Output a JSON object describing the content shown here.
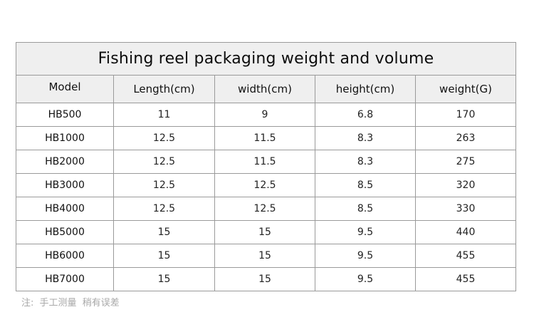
{
  "table": {
    "title": "Fishing reel packaging weight and volume",
    "headers": [
      "Model",
      "Length(cm)",
      "width(cm)",
      "height(cm)",
      "weight(G)"
    ],
    "rows": [
      [
        "HB500",
        "11",
        "9",
        "6.8",
        "170"
      ],
      [
        "HB1000",
        "12.5",
        "11.5",
        "8.3",
        "263"
      ],
      [
        "HB2000",
        "12.5",
        "11.5",
        "8.3",
        "275"
      ],
      [
        "HB3000",
        "12.5",
        "12.5",
        "8.5",
        "320"
      ],
      [
        "HB4000",
        "12.5",
        "12.5",
        "8.5",
        "330"
      ],
      [
        "HB5000",
        "15",
        "15",
        "9.5",
        "440"
      ],
      [
        "HB6000",
        "15",
        "15",
        "9.5",
        "455"
      ],
      [
        "HB7000",
        "15",
        "15",
        "9.5",
        "455"
      ]
    ]
  },
  "footnote": {
    "label": "注:",
    "part1": "手工测量",
    "part2": "稍有误差"
  },
  "colors": {
    "header_bg": "#efefef",
    "border": "#9a9a9a",
    "footnote_text": "#a8a8a8"
  }
}
